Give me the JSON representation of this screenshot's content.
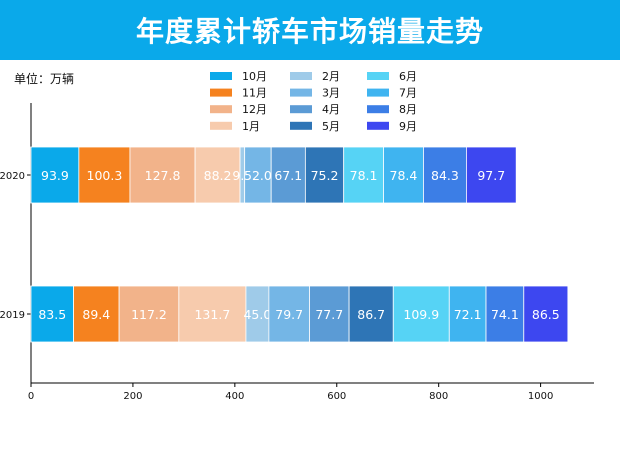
{
  "chart_data": {
    "type": "bar",
    "orientation": "horizontal",
    "stacked": true,
    "title": "年度累计轿车市场销量走势",
    "unit_label": "单位：万辆",
    "categories": [
      "2020",
      "2019"
    ],
    "xlim": [
      0,
      1100
    ],
    "xticks": [
      0,
      200,
      400,
      600,
      800,
      1000
    ],
    "series": [
      {
        "name": "10月",
        "color": "#0aa9ea",
        "values": [
          93.9,
          83.5
        ]
      },
      {
        "name": "11月",
        "color": "#f5821f",
        "values": [
          100.3,
          89.4
        ]
      },
      {
        "name": "12月",
        "color": "#f2b38a",
        "values": [
          127.8,
          117.2
        ]
      },
      {
        "name": "1月",
        "color": "#f7cbad",
        "values": [
          88.2,
          131.7
        ]
      },
      {
        "name": "2月",
        "color": "#9fcbe9",
        "values": [
          9.1,
          45.0
        ]
      },
      {
        "name": "3月",
        "color": "#74b6e6",
        "values": [
          52.0,
          79.7
        ]
      },
      {
        "name": "4月",
        "color": "#5b9bd5",
        "values": [
          67.1,
          77.7
        ]
      },
      {
        "name": "5月",
        "color": "#2e75b6",
        "values": [
          75.2,
          86.7
        ]
      },
      {
        "name": "6月",
        "color": "#56d3f5",
        "values": [
          78.1,
          109.9
        ]
      },
      {
        "name": "7月",
        "color": "#3fb4f0",
        "values": [
          78.4,
          72.1
        ]
      },
      {
        "name": "8月",
        "color": "#3c7ee6",
        "values": [
          84.3,
          74.1
        ]
      },
      {
        "name": "9月",
        "color": "#3d47f0",
        "values": [
          97.7,
          86.5
        ]
      }
    ],
    "value_labels": [
      [
        "93.9",
        "100.3",
        "127.8",
        "88.2",
        "9.1",
        "52.0",
        "67.1",
        "75.2",
        "78.1",
        "78.4",
        "84.3",
        "97.7"
      ],
      [
        "83.5",
        "89.4",
        "117.2",
        "131.7",
        "45.0",
        "79.7",
        "77.7",
        "86.7",
        "109.9",
        "72.1",
        "74.1",
        "86.5"
      ]
    ],
    "legend_position": "top-center"
  }
}
